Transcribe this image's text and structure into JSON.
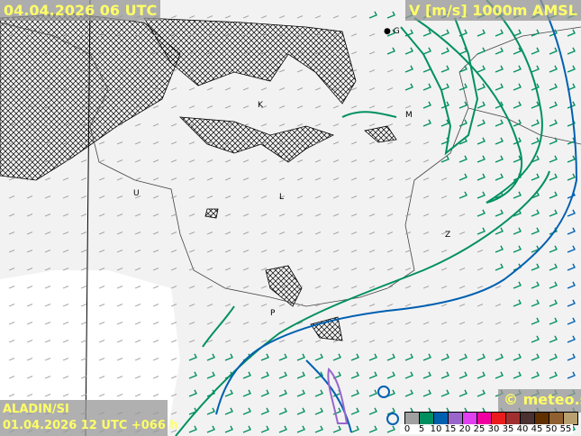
{
  "header": {
    "valid_time": "04.04.2026 06 UTC",
    "parameter": "V [m/s] 1000m AMSL"
  },
  "footer": {
    "model": "ALADIN/SI",
    "run": "01.04.2026 12 UTC +066 h",
    "copyright": "© meteo.si"
  },
  "legend": {
    "colors": [
      "#a0a0a0",
      "#009060",
      "#0060b0",
      "#9966cc",
      "#e040f0",
      "#f000a0",
      "#e81c1c",
      "#a03030",
      "#4a3030",
      "#603000",
      "#906030",
      "#b8a070"
    ],
    "labels": [
      "0",
      "5",
      "10",
      "15",
      "20",
      "25",
      "30",
      "35",
      "40",
      "45",
      "50",
      "55"
    ]
  },
  "cities": [
    {
      "label": "G"
    },
    {
      "label": "K"
    },
    {
      "label": "M"
    },
    {
      "label": "U"
    },
    {
      "label": "L"
    },
    {
      "label": "Z"
    },
    {
      "label": "P"
    }
  ],
  "colors": {
    "contour_5": "#009060",
    "contour_10": "#0060b0",
    "contour_15": "#9966cc",
    "label_text": "#ffff66"
  }
}
